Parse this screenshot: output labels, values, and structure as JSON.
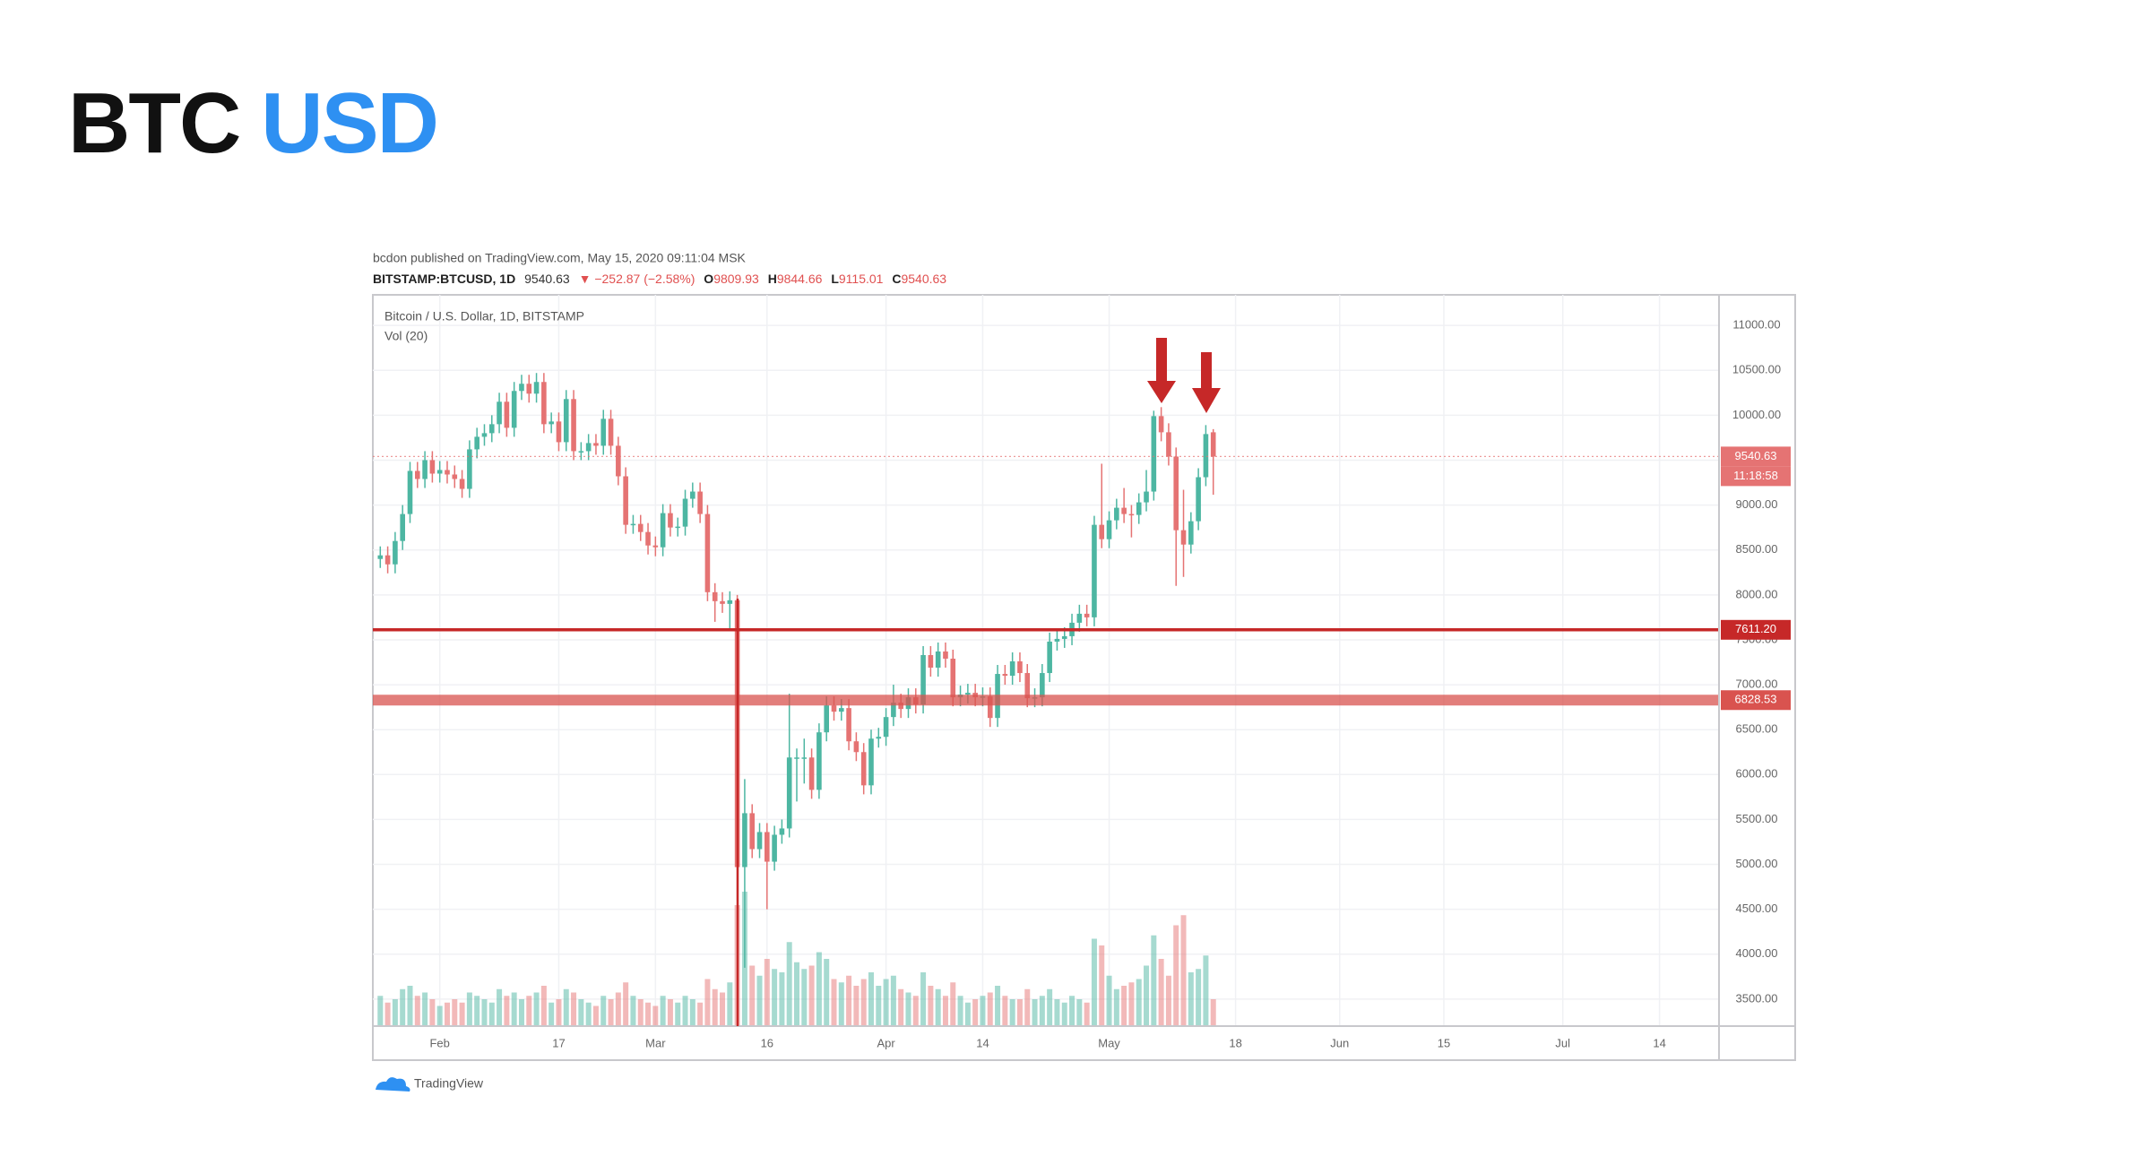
{
  "slide": {
    "title_left": "BTC",
    "title_right": "USD"
  },
  "chart_data": {
    "type": "candlestick",
    "published": "bcdon published on TradingView.com, May 15, 2020 09:11:04 MSK",
    "symbol": "BITSTAMP:BTCUSD, 1D",
    "last": "9540.63",
    "change": "▼ −252.87 (−2.58%)",
    "ohlc": [
      {
        "key": "O",
        "value": "9809.93"
      },
      {
        "key": "H",
        "value": "9844.66"
      },
      {
        "key": "L",
        "value": "9115.01"
      },
      {
        "key": "C",
        "value": "9540.63"
      }
    ],
    "title": "Bitcoin / U.S. Dollar, 1D, BITSTAMP",
    "volume_title": "Vol (20)",
    "footer": "TradingView",
    "up_color": "#4db6a2",
    "down_color": "#e57373",
    "grid": true,
    "xlim": [
      -1,
      180
    ],
    "xticks": [
      {
        "value": 8,
        "label": "Feb"
      },
      {
        "value": 24,
        "label": "17"
      },
      {
        "value": 37,
        "label": "Mar"
      },
      {
        "value": 52,
        "label": "16"
      },
      {
        "value": 68,
        "label": "Apr"
      },
      {
        "value": 81,
        "label": "14"
      },
      {
        "value": 98,
        "label": "May"
      },
      {
        "value": 115,
        "label": "18"
      },
      {
        "value": 129,
        "label": "Jun"
      },
      {
        "value": 143,
        "label": "15"
      },
      {
        "value": 159,
        "label": "Jul"
      },
      {
        "value": 172,
        "label": "14"
      }
    ],
    "ylim": [
      3200,
      11340
    ],
    "yticks": [
      {
        "value": 3500,
        "label": "3500.00"
      },
      {
        "value": 4000,
        "label": "4000.00"
      },
      {
        "value": 4500,
        "label": "4500.00"
      },
      {
        "value": 5000,
        "label": "5000.00"
      },
      {
        "value": 5500,
        "label": "5500.00"
      },
      {
        "value": 6000,
        "label": "6000.00"
      },
      {
        "value": 6500,
        "label": "6500.00"
      },
      {
        "value": 7000,
        "label": "7000.00"
      },
      {
        "value": 7500,
        "label": "7500.00"
      },
      {
        "value": 8000,
        "label": "8000.00"
      },
      {
        "value": 8500,
        "label": "8500.00"
      },
      {
        "value": 9000,
        "label": "9000.00"
      },
      {
        "value": 9500,
        "label": "9500.00"
      },
      {
        "value": 10000,
        "label": "10000.00"
      },
      {
        "value": 10500,
        "label": "10500.00"
      },
      {
        "value": 11000,
        "label": "11000.00"
      }
    ],
    "price_lines": [
      {
        "value": 7611.2,
        "label": "7611.20",
        "color": "#c62828"
      },
      {
        "value": 6828.53,
        "label": "6828.53",
        "color": "#d9534f"
      }
    ],
    "last_price": {
      "value": 9540.63,
      "label": "9540.63"
    },
    "countdown": "11:18:58",
    "open": [
      8400,
      8440,
      8340,
      8600,
      8900,
      9380,
      9290,
      9500,
      9350,
      9390,
      9340,
      9290,
      9180,
      9620,
      9760,
      9800,
      9900,
      10150,
      9860,
      10270,
      10350,
      10240,
      10370,
      9900,
      9930,
      9700,
      10180,
      9600,
      9600,
      9690,
      9660,
      9960,
      9660,
      9320,
      8780,
      8790,
      8700,
      8550,
      8530,
      8910,
      8750,
      8760,
      9070,
      9150,
      8900,
      8030,
      7930,
      7900,
      7940,
      4970,
      5570,
      5170,
      5360,
      5030,
      5330,
      5400,
      6190,
      6190,
      6190,
      5830,
      6470,
      6770,
      6700,
      6740,
      6370,
      6250,
      5880,
      6400,
      6420,
      6640,
      6800,
      6730,
      6860,
      6780,
      7330,
      7190,
      7370,
      7290,
      6860,
      6890,
      6910,
      6860,
      6870,
      6630,
      7120,
      7100,
      7260,
      7130,
      6850,
      6860,
      7130,
      7480,
      7510,
      7540,
      7690,
      7790,
      7750,
      8780,
      8620,
      8830,
      8970,
      8900,
      8890,
      9030,
      9150,
      9990,
      9810,
      9540,
      8720,
      8560,
      8820,
      9310,
      9810
    ],
    "high": [
      8540,
      8540,
      8700,
      9000,
      9480,
      9480,
      9600,
      9600,
      9490,
      9490,
      9440,
      9390,
      9720,
      9860,
      9900,
      10000,
      10250,
      10250,
      10370,
      10450,
      10450,
      10470,
      10470,
      10030,
      10030,
      10280,
      10280,
      9700,
      9790,
      9790,
      10060,
      10060,
      9760,
      9420,
      8890,
      8890,
      8800,
      8650,
      9010,
      9010,
      8860,
      9170,
      9250,
      9250,
      9000,
      8130,
      8030,
      8040,
      8000,
      5950,
      5670,
      5460,
      5460,
      5430,
      5500,
      6900,
      6290,
      6400,
      6290,
      6570,
      6870,
      6870,
      6840,
      6840,
      6470,
      6350,
      6500,
      6520,
      6740,
      7000,
      6900,
      6960,
      6960,
      7430,
      7430,
      7470,
      7470,
      7390,
      6990,
      7010,
      7010,
      6970,
      6970,
      7220,
      7220,
      7360,
      7360,
      7230,
      6960,
      7230,
      7580,
      7610,
      7640,
      7790,
      7890,
      7890,
      8880,
      9460,
      8930,
      9070,
      9190,
      9000,
      9130,
      9390,
      10050,
      10090,
      9910,
      9640,
      9170,
      8920,
      9410,
      9890,
      9845
    ],
    "low": [
      8300,
      8240,
      8240,
      8500,
      8800,
      9190,
      9190,
      9250,
      9250,
      9240,
      9190,
      9080,
      9080,
      9520,
      9660,
      9700,
      9800,
      9760,
      9760,
      10170,
      10140,
      10140,
      9800,
      9800,
      9600,
      9600,
      9500,
      9500,
      9500,
      9560,
      9560,
      9560,
      9220,
      8680,
      8680,
      8600,
      8450,
      8430,
      8430,
      8650,
      8650,
      8660,
      8970,
      8800,
      7930,
      7700,
      7800,
      7600,
      4600,
      3850,
      5070,
      5070,
      4500,
      4930,
      5230,
      5300,
      5700,
      5900,
      5730,
      5730,
      6370,
      6600,
      6600,
      6270,
      6150,
      5780,
      5780,
      6300,
      6320,
      6540,
      6630,
      6630,
      6680,
      6680,
      7090,
      7090,
      7190,
      6760,
      6760,
      6790,
      6760,
      6760,
      6530,
      6530,
      7000,
      7000,
      7030,
      6750,
      6750,
      6760,
      7030,
      7380,
      7410,
      7440,
      7590,
      7650,
      7650,
      8520,
      8520,
      8730,
      8800,
      8640,
      8790,
      8930,
      9050,
      9710,
      9440,
      8100,
      8200,
      8460,
      8720,
      9210,
      9115
    ],
    "close": [
      8440,
      8340,
      8600,
      8900,
      9380,
      9290,
      9500,
      9350,
      9390,
      9340,
      9290,
      9180,
      9620,
      9760,
      9800,
      9900,
      10150,
      9860,
      10270,
      10350,
      10240,
      10370,
      9900,
      9930,
      9700,
      10180,
      9600,
      9600,
      9690,
      9660,
      9960,
      9660,
      9320,
      8780,
      8790,
      8700,
      8550,
      8530,
      8910,
      8750,
      8760,
      9070,
      9150,
      8900,
      8030,
      7930,
      7900,
      7940,
      4970,
      5570,
      5170,
      5360,
      5030,
      5330,
      5400,
      6190,
      6190,
      6190,
      5830,
      6470,
      6770,
      6700,
      6740,
      6370,
      6250,
      5880,
      6400,
      6420,
      6640,
      6800,
      6730,
      6860,
      6780,
      7330,
      7190,
      7370,
      7290,
      6860,
      6890,
      6910,
      6860,
      6870,
      6630,
      7120,
      7100,
      7260,
      7130,
      6850,
      6860,
      7130,
      7480,
      7510,
      7540,
      7690,
      7790,
      7750,
      8780,
      8620,
      8830,
      8970,
      8900,
      8890,
      9030,
      9150,
      9990,
      9810,
      9540,
      8720,
      8560,
      8820,
      9310,
      9790,
      9540
    ],
    "volume": [
      9,
      7,
      8,
      11,
      12,
      9,
      10,
      8,
      6,
      7,
      8,
      7,
      10,
      9,
      8,
      7,
      11,
      9,
      10,
      8,
      9,
      10,
      12,
      7,
      8,
      11,
      10,
      8,
      7,
      6,
      9,
      8,
      10,
      13,
      9,
      8,
      7,
      6,
      9,
      8,
      7,
      9,
      8,
      7,
      14,
      11,
      10,
      13,
      36,
      40,
      18,
      15,
      20,
      17,
      16,
      25,
      19,
      17,
      18,
      22,
      20,
      14,
      13,
      15,
      12,
      14,
      16,
      12,
      14,
      15,
      11,
      10,
      9,
      16,
      12,
      11,
      9,
      13,
      9,
      7,
      8,
      9,
      10,
      12,
      9,
      8,
      8,
      11,
      8,
      9,
      11,
      8,
      7,
      9,
      8,
      7,
      26,
      24,
      15,
      11,
      12,
      13,
      14,
      18,
      27,
      20,
      15,
      30,
      33,
      16,
      17,
      21,
      8
    ]
  }
}
